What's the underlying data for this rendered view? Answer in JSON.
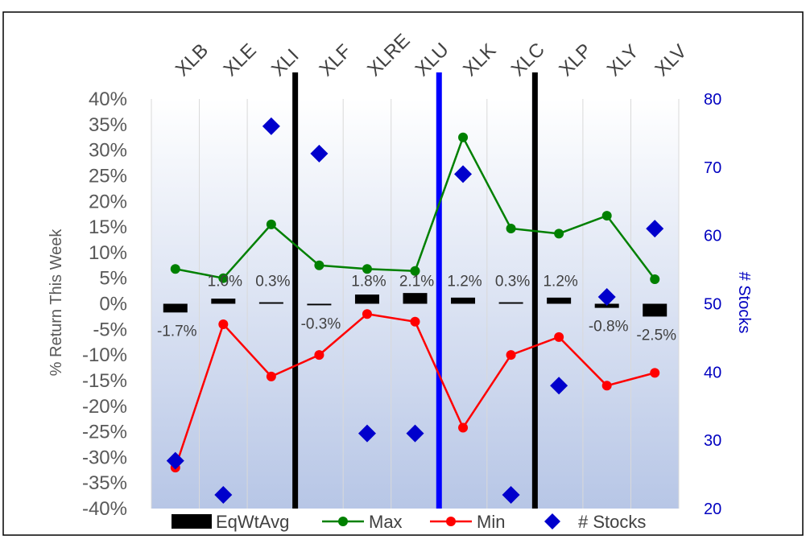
{
  "chart_data": {
    "type": "line",
    "categories": [
      "XLB",
      "XLE",
      "XLI",
      "XLF",
      "XLRE",
      "XLU",
      "XLK",
      "XLC",
      "XLP",
      "XLY",
      "XLV"
    ],
    "ylabel": "% Return This Week",
    "y2label": "# Stocks",
    "ylim": [
      -40,
      40
    ],
    "y_ticks": [
      "-40%",
      "-35%",
      "-30%",
      "-25%",
      "-20%",
      "-15%",
      "-10%",
      "-5%",
      "0%",
      "5%",
      "10%",
      "15%",
      "20%",
      "25%",
      "30%",
      "35%",
      "40%"
    ],
    "y2lim": [
      20,
      80
    ],
    "y2_ticks": [
      "20",
      "30",
      "40",
      "50",
      "60",
      "70",
      "80"
    ],
    "grid": true,
    "legend_position": "bottom",
    "series": [
      {
        "name": "EqWtAvg",
        "kind": "bar-marker",
        "color": "#000000",
        "values": [
          -1.7,
          1.0,
          0.3,
          -0.3,
          1.8,
          2.1,
          1.2,
          0.3,
          1.2,
          -0.8,
          -2.5
        ],
        "labels": [
          "-1.7%",
          "1.0%",
          "0.3%",
          "-0.3%",
          "1.8%",
          "2.1%",
          "1.2%",
          "0.3%",
          "1.2%",
          "-0.8%",
          "-2.5%"
        ]
      },
      {
        "name": "Max",
        "kind": "line",
        "color": "#008000",
        "values": [
          6.8,
          5.0,
          15.5,
          7.5,
          6.8,
          6.4,
          32.5,
          14.7,
          13.7,
          17.2,
          4.8
        ]
      },
      {
        "name": "Min",
        "kind": "line",
        "color": "#ff0000",
        "values": [
          -32.0,
          -4.0,
          -14.2,
          -10.0,
          -2.0,
          -3.5,
          -24.2,
          -10.0,
          -6.5,
          -16.0,
          -13.5
        ]
      },
      {
        "name": "# Stocks",
        "kind": "scatter",
        "axis": "y2",
        "color": "#0000cc",
        "values": [
          27,
          22,
          76,
          72,
          31,
          31,
          69,
          22,
          38,
          51,
          61
        ]
      }
    ],
    "separators": [
      {
        "between": [
          "XLI",
          "XLF"
        ],
        "color": "#000000"
      },
      {
        "between": [
          "XLU",
          "XLK"
        ],
        "color": "#0000ff"
      },
      {
        "between": [
          "XLC",
          "XLP"
        ],
        "color": "#000000"
      }
    ]
  }
}
